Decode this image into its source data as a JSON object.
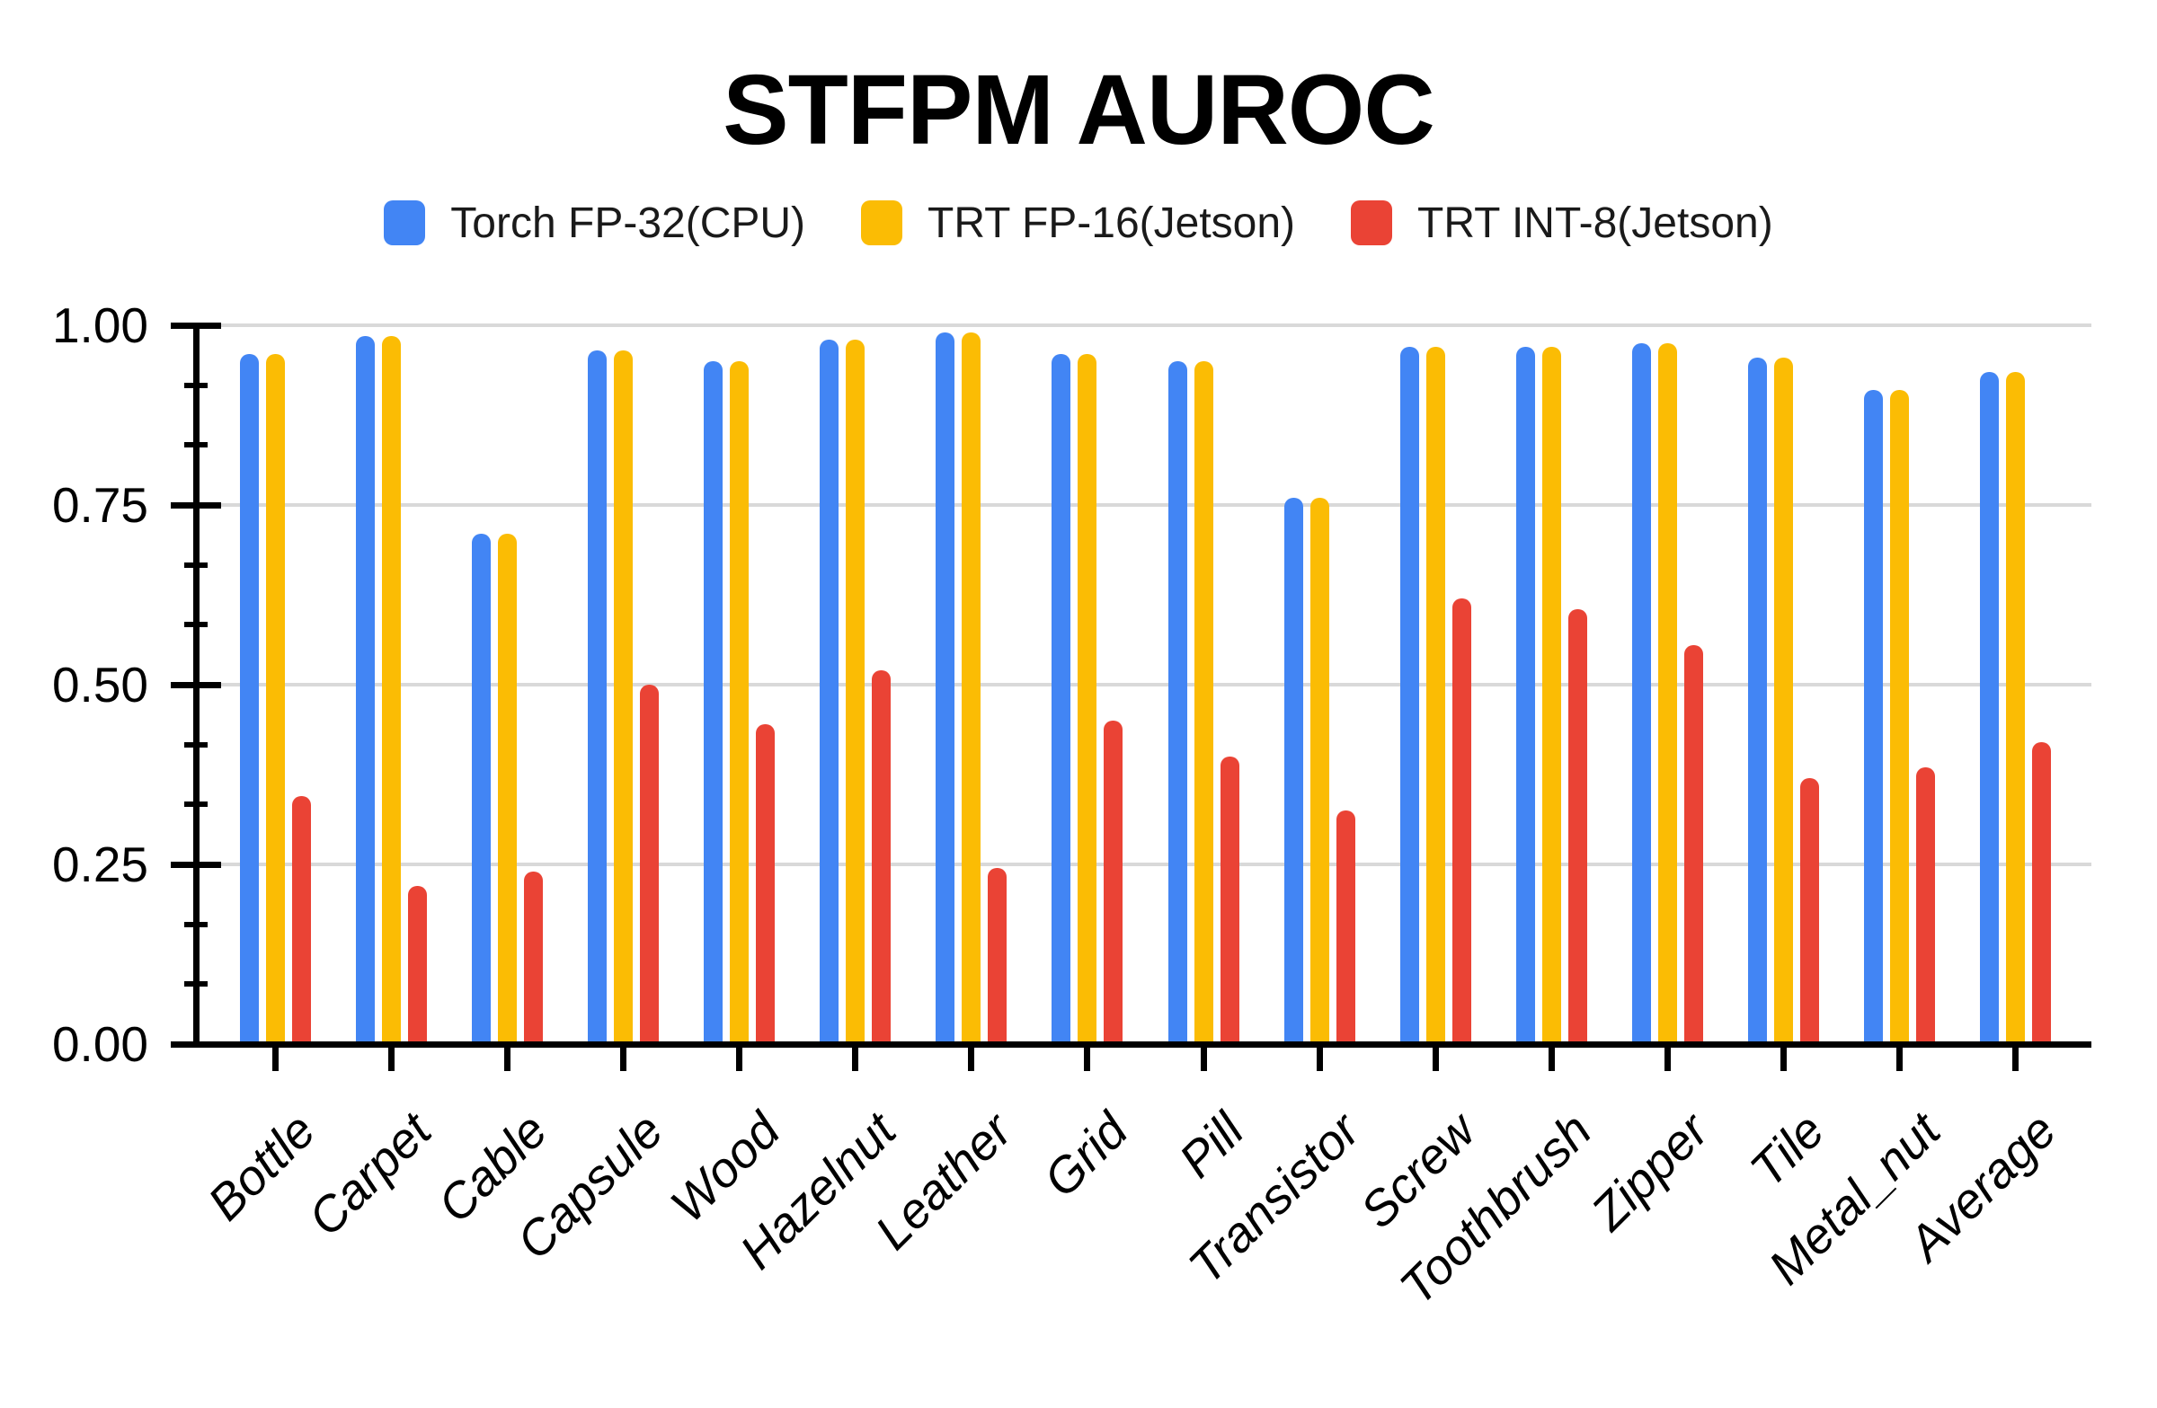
{
  "title": "STFPM AUROC",
  "legend": [
    {
      "label": "Torch FP-32(CPU)",
      "color": "#4285F4"
    },
    {
      "label": "TRT FP-16(Jetson)",
      "color": "#FBBC04"
    },
    {
      "label": "TRT INT-8(Jetson)",
      "color": "#EA4335"
    }
  ],
  "chart_data": {
    "type": "bar",
    "title": "STFPM AUROC",
    "categories": [
      "Bottle",
      "Carpet",
      "Cable",
      "Capsule",
      "Wood",
      "Hazelnut",
      "Leather",
      "Grid",
      "Pill",
      "Transistor",
      "Screw",
      "Toothbrush",
      "Zipper",
      "Tile",
      "Metal_nut",
      "Average"
    ],
    "series": [
      {
        "name": "Torch FP-32(CPU)",
        "color": "#4285F4",
        "values": [
          0.96,
          0.985,
          0.71,
          0.965,
          0.95,
          0.98,
          0.99,
          0.96,
          0.95,
          0.76,
          0.97,
          0.97,
          0.975,
          0.955,
          0.91,
          0.935
        ]
      },
      {
        "name": "TRT FP-16(Jetson)",
        "color": "#FBBC04",
        "values": [
          0.96,
          0.985,
          0.71,
          0.965,
          0.95,
          0.98,
          0.99,
          0.96,
          0.95,
          0.76,
          0.97,
          0.97,
          0.975,
          0.955,
          0.91,
          0.935
        ]
      },
      {
        "name": "TRT INT-8(Jetson)",
        "color": "#EA4335",
        "values": [
          0.345,
          0.22,
          0.24,
          0.5,
          0.445,
          0.52,
          0.245,
          0.45,
          0.4,
          0.325,
          0.62,
          0.605,
          0.555,
          0.37,
          0.385,
          0.42
        ]
      }
    ],
    "xlabel": "",
    "ylabel": "",
    "ylim": [
      0,
      1.0
    ],
    "yticks": [
      "1.00",
      "0.75",
      "0.50",
      "0.25",
      "0.00"
    ],
    "grid": true,
    "legend_position": "top",
    "gridline_color": "#d9d9d9",
    "axis_color": "#000000"
  }
}
